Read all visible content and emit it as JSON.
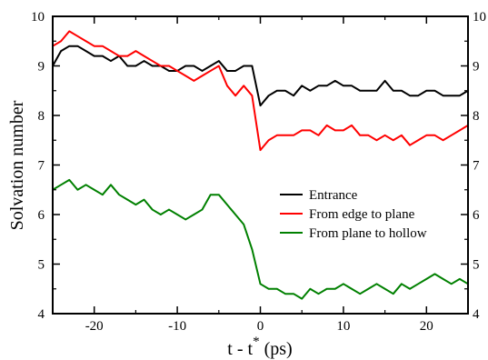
{
  "chart_data": {
    "type": "line",
    "title": "",
    "xlabel": "t - t* (ps)",
    "ylabel": "Solvation number",
    "xlim": [
      -25,
      25
    ],
    "ylim": [
      4,
      10
    ],
    "xticks": [
      -20,
      -10,
      0,
      10,
      20
    ],
    "yticks": [
      4,
      5,
      6,
      7,
      8,
      9,
      10
    ],
    "legend": {
      "placement": "center-right"
    },
    "series": [
      {
        "name": "Entrance",
        "color": "#000000",
        "x": [
          -25,
          -24,
          -23,
          -22,
          -21,
          -20,
          -19,
          -18,
          -17,
          -16,
          -15,
          -14,
          -13,
          -12,
          -11,
          -10,
          -9,
          -8,
          -7,
          -6,
          -5,
          -4,
          -3,
          -2,
          -1,
          0,
          1,
          2,
          3,
          4,
          5,
          6,
          7,
          8,
          9,
          10,
          11,
          12,
          13,
          14,
          15,
          16,
          17,
          18,
          19,
          20,
          21,
          22,
          23,
          24,
          25
        ],
        "values": [
          9.0,
          9.3,
          9.4,
          9.4,
          9.3,
          9.2,
          9.2,
          9.1,
          9.2,
          9.0,
          9.0,
          9.1,
          9.0,
          9.0,
          8.9,
          8.9,
          9.0,
          9.0,
          8.9,
          9.0,
          9.1,
          8.9,
          8.9,
          9.0,
          9.0,
          8.2,
          8.4,
          8.5,
          8.5,
          8.4,
          8.6,
          8.5,
          8.6,
          8.6,
          8.7,
          8.6,
          8.6,
          8.5,
          8.5,
          8.5,
          8.7,
          8.5,
          8.5,
          8.4,
          8.4,
          8.5,
          8.5,
          8.4,
          8.4,
          8.4,
          8.5
        ]
      },
      {
        "name": "From edge to plane",
        "color": "#ff0000",
        "x": [
          -25,
          -24,
          -23,
          -22,
          -21,
          -20,
          -19,
          -18,
          -17,
          -16,
          -15,
          -14,
          -13,
          -12,
          -11,
          -10,
          -9,
          -8,
          -7,
          -6,
          -5,
          -4,
          -3,
          -2,
          -1,
          0,
          1,
          2,
          3,
          4,
          5,
          6,
          7,
          8,
          9,
          10,
          11,
          12,
          13,
          14,
          15,
          16,
          17,
          18,
          19,
          20,
          21,
          22,
          23,
          24,
          25
        ],
        "values": [
          9.4,
          9.5,
          9.7,
          9.6,
          9.5,
          9.4,
          9.4,
          9.3,
          9.2,
          9.2,
          9.3,
          9.2,
          9.1,
          9.0,
          9.0,
          8.9,
          8.8,
          8.7,
          8.8,
          8.9,
          9.0,
          8.6,
          8.4,
          8.6,
          8.4,
          7.3,
          7.5,
          7.6,
          7.6,
          7.6,
          7.7,
          7.7,
          7.6,
          7.8,
          7.7,
          7.7,
          7.8,
          7.6,
          7.6,
          7.5,
          7.6,
          7.5,
          7.6,
          7.4,
          7.5,
          7.6,
          7.6,
          7.5,
          7.6,
          7.7,
          7.8
        ]
      },
      {
        "name": "From plane to hollow",
        "color": "#008000",
        "x": [
          -25,
          -24,
          -23,
          -22,
          -21,
          -20,
          -19,
          -18,
          -17,
          -16,
          -15,
          -14,
          -13,
          -12,
          -11,
          -10,
          -9,
          -8,
          -7,
          -6,
          -5,
          -4,
          -3,
          -2,
          -1,
          0,
          1,
          2,
          3,
          4,
          5,
          6,
          7,
          8,
          9,
          10,
          11,
          12,
          13,
          14,
          15,
          16,
          17,
          18,
          19,
          20,
          21,
          22,
          23,
          24,
          25
        ],
        "values": [
          6.5,
          6.6,
          6.7,
          6.5,
          6.6,
          6.5,
          6.4,
          6.6,
          6.4,
          6.3,
          6.2,
          6.3,
          6.1,
          6.0,
          6.1,
          6.0,
          5.9,
          6.0,
          6.1,
          6.4,
          6.4,
          6.2,
          6.0,
          5.8,
          5.3,
          4.6,
          4.5,
          4.5,
          4.4,
          4.4,
          4.3,
          4.5,
          4.4,
          4.5,
          4.5,
          4.6,
          4.5,
          4.4,
          4.5,
          4.6,
          4.5,
          4.4,
          4.6,
          4.5,
          4.6,
          4.7,
          4.8,
          4.7,
          4.6,
          4.7,
          4.6
        ]
      }
    ]
  }
}
